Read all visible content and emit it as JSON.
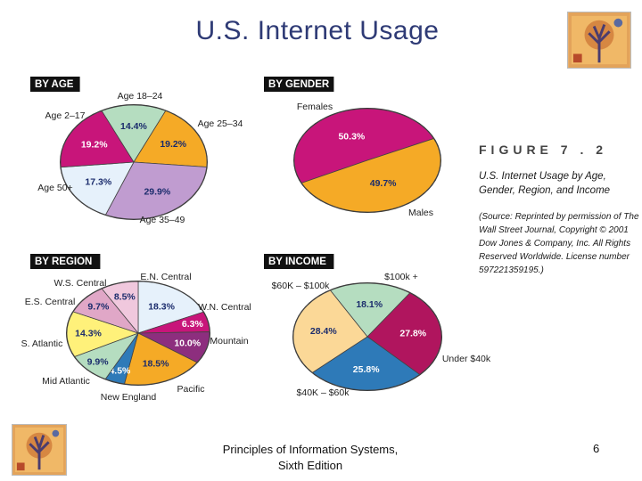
{
  "title": "U.S. Internet Usage",
  "figure": {
    "label": "FIGURE 7 . 2",
    "caption": "U.S. Internet Usage by Age, Gender, Region, and Income",
    "source": "(Source: Reprinted by permission of The Wall Street Journal, Copyright © 2001 Dow Jones & Company, Inc. All Rights Reserved Worldwide. License number 597221359195.)"
  },
  "footer": {
    "line1": "Principles of Information Systems,",
    "line2": "Sixth Edition",
    "page": "6"
  },
  "colors": {
    "magenta": "#c8157a",
    "green": "#b5ddc0",
    "orange": "#f5aa26",
    "lavender": "#c09cd0",
    "ice": "#e6f1fb",
    "pink": "#f0c8dd",
    "rose": "#e0a7c7",
    "yellow": "#fff17a",
    "peach": "#fbd897",
    "purple": "#8d2e7e",
    "blue": "#2e7ab8",
    "navy": "#1b2c6c"
  },
  "chart_data": [
    {
      "type": "pie",
      "title": "BY AGE",
      "categories": [
        "Age 18–24",
        "Age 25–34",
        "Age 35–49",
        "Age 50+",
        "Age 2–17"
      ],
      "values": [
        14.4,
        19.2,
        29.9,
        17.3,
        19.2
      ],
      "value_labels": [
        "14.4%",
        "19.2%",
        "29.9%",
        "17.3%",
        "19.2%"
      ],
      "colors": [
        "#b5ddc0",
        "#f5aa26",
        "#c09cd0",
        "#e6f1fb",
        "#c8157a"
      ]
    },
    {
      "type": "pie",
      "title": "BY GENDER",
      "categories": [
        "Females",
        "Males"
      ],
      "values": [
        50.3,
        49.7
      ],
      "value_labels": [
        "50.3%",
        "49.7%"
      ],
      "colors": [
        "#c8157a",
        "#f5aa26"
      ]
    },
    {
      "type": "pie",
      "title": "BY REGION",
      "categories": [
        "E.N. Central",
        "W.N. Central",
        "Mountain",
        "Pacific",
        "New England",
        "Mid Atlantic",
        "S. Atlantic",
        "E.S. Central",
        "W.S. Central"
      ],
      "values": [
        18.3,
        6.3,
        10.0,
        18.5,
        4.5,
        9.9,
        14.3,
        9.7,
        8.5
      ],
      "value_labels": [
        "18.3%",
        "6.3%",
        "10.0%",
        "18.5%",
        "4.5%",
        "9.9%",
        "14.3%",
        "9.7%",
        "8.5%"
      ],
      "colors": [
        "#e6f1fb",
        "#c8157a",
        "#8d2e7e",
        "#f5aa26",
        "#2e7ab8",
        "#b5ddc0",
        "#fff17a",
        "#e0a7c7",
        "#f0c8dd"
      ]
    },
    {
      "type": "pie",
      "title": "BY INCOME",
      "categories": [
        "$100k +",
        "Under $40k",
        "$40K – $60k",
        "$60K – $100k"
      ],
      "values": [
        18.1,
        27.8,
        25.8,
        28.4
      ],
      "value_labels": [
        "18.1%",
        "27.8%",
        "25.8%",
        "28.4%"
      ],
      "colors": [
        "#b5ddc0",
        "#b0155e",
        "#2e7ab8",
        "#fbd897"
      ]
    }
  ]
}
